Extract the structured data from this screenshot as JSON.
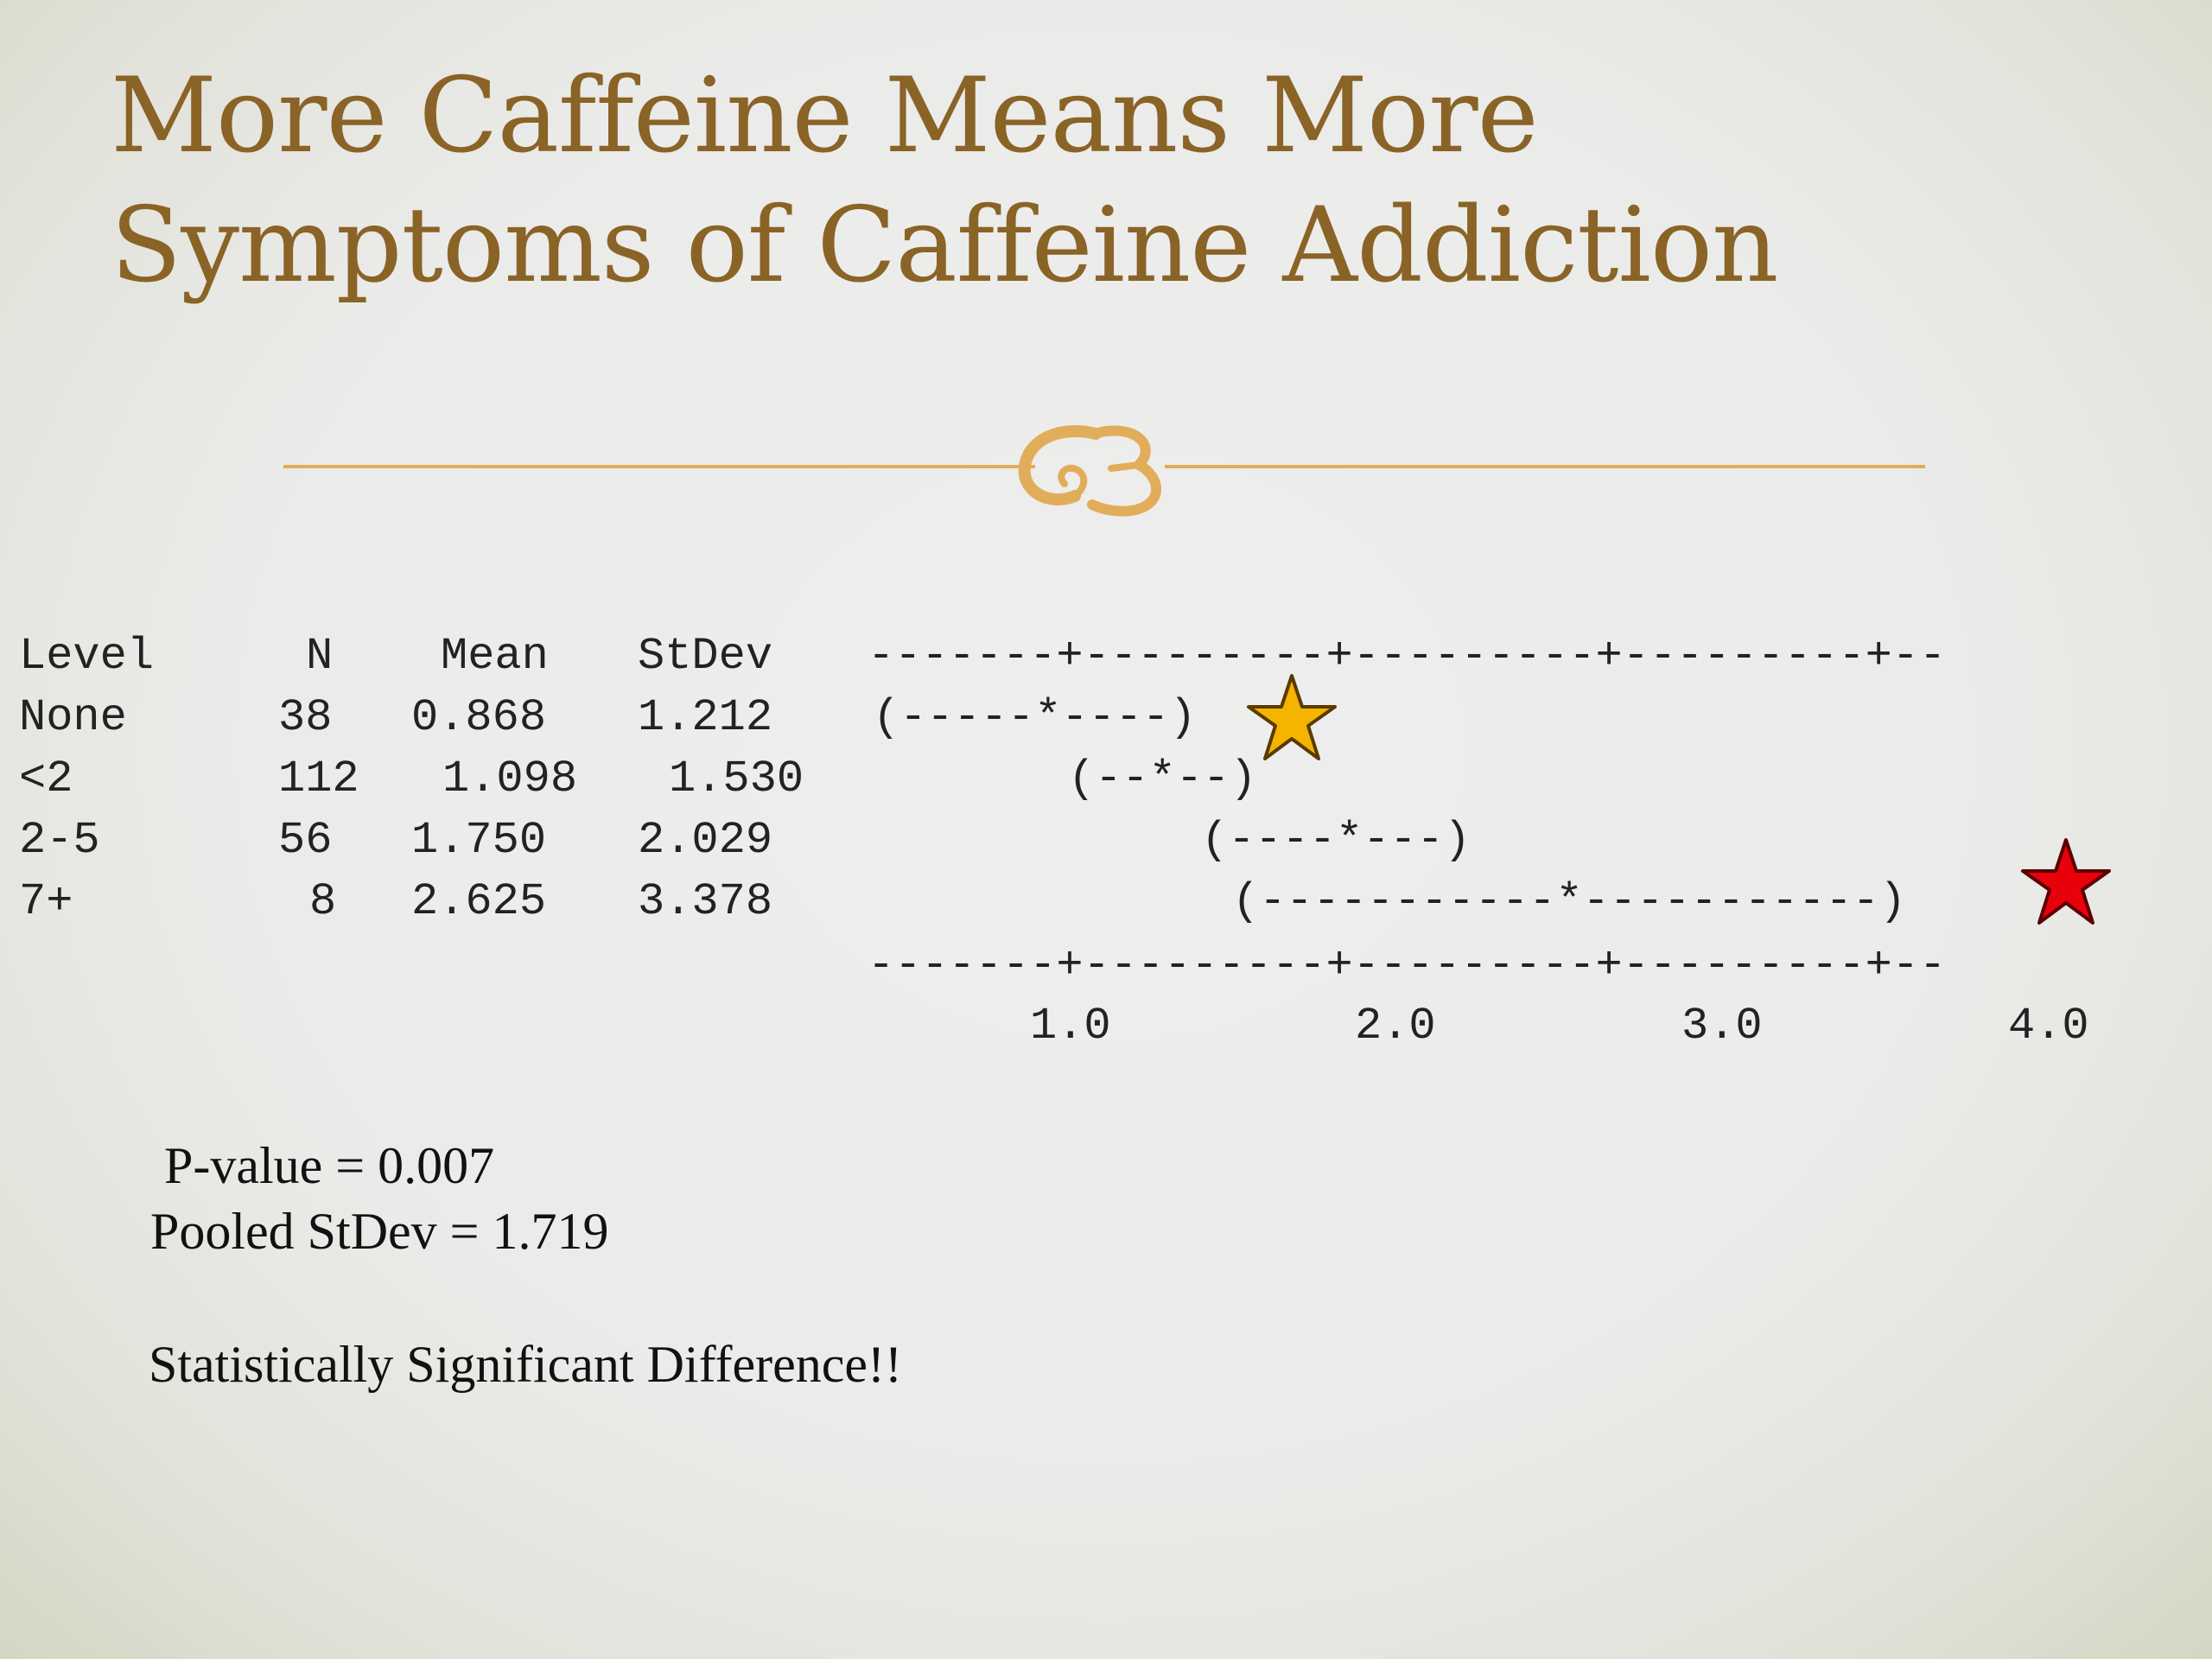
{
  "title": {
    "line1": "More Caffeine Means More",
    "line2": "Symptoms of Caffeine Addiction"
  },
  "divider_icon": "fleuron-ornament",
  "accent_color": "#e2ad5a",
  "title_color": "#8a6326",
  "table": {
    "headers": [
      "Level",
      "N",
      "Mean",
      "StDev"
    ],
    "rows": [
      {
        "level": "None",
        "n": "38",
        "mean": "0.868",
        "stdev": "1.212"
      },
      {
        "level": "<2",
        "n": "112",
        "mean": "1.098",
        "stdev": "1.530"
      },
      {
        "level": "2-5",
        "n": "56",
        "mean": "1.750",
        "stdev": "2.029"
      },
      {
        "level": "7+",
        "n": "8",
        "mean": "2.625",
        "stdev": "3.378"
      }
    ]
  },
  "chart_data": {
    "type": "scatter",
    "x_ticks": [
      "1.0",
      "2.0",
      "3.0",
      "4.0"
    ],
    "xlim": [
      0.32,
      4.32
    ],
    "rule_text": "-------+---------+---------+---------+--",
    "intervals": [
      {
        "level": "None",
        "mean": 0.868,
        "text": "(-----*----)",
        "marker": "gold-star",
        "marker_color": "#f5b400"
      },
      {
        "level": "<2",
        "mean": 1.098,
        "text": "(--*--)"
      },
      {
        "level": "2-5",
        "mean": 1.75,
        "text": "(----*---)"
      },
      {
        "level": "7+",
        "mean": 2.625,
        "text": "(-----------*-----------)",
        "marker": "red-star",
        "marker_color": "#e8000b"
      }
    ]
  },
  "stats": {
    "p_value": "P-value = 0.007",
    "pooled": "Pooled StDev = 1.719",
    "conclusion": "Statistically Significant Difference!!"
  }
}
